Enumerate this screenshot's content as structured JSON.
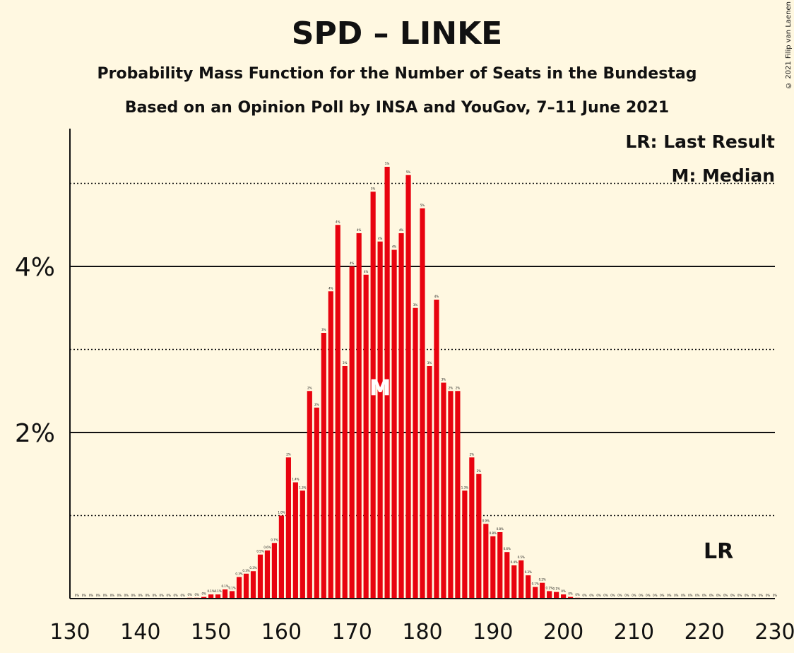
{
  "title": "SPD – LINKE",
  "subtitle1": "Probability Mass Function for the Number of Seats in the Bundestag",
  "subtitle2": "Based on an Opinion Poll by INSA and YouGov, 7–11 June 2021",
  "copyright": "© 2021 Filip van Laenen",
  "legend": {
    "last_result": "LR: Last Result",
    "median": "M: Median"
  },
  "markers": {
    "median_label": "M",
    "median_seat": 174,
    "last_result_label": "LR",
    "last_result_seat": 222
  },
  "colors": {
    "bar": "#e8030f",
    "background": "#fff8e1"
  },
  "chart_data": {
    "type": "bar",
    "xlabel": "",
    "ylabel": "",
    "xlim": [
      130,
      230
    ],
    "ylim": [
      0,
      5.6
    ],
    "x_ticks": [
      "130",
      "140",
      "150",
      "160",
      "170",
      "180",
      "190",
      "200",
      "210",
      "220",
      "230"
    ],
    "y_ticks": [
      {
        "value": 2,
        "label": "2%"
      },
      {
        "value": 4,
        "label": "4%"
      }
    ],
    "y_solid_gridlines": [
      2,
      4
    ],
    "y_dotted_gridlines": [
      1,
      3,
      5
    ],
    "series": [
      {
        "seats": [
          131,
          132,
          133,
          134,
          135,
          136,
          137,
          138,
          139,
          140,
          141,
          142,
          143,
          144,
          145,
          146,
          147,
          148,
          149,
          150,
          151,
          152,
          153,
          154,
          155,
          156,
          157,
          158,
          159,
          160,
          161,
          162,
          163,
          164,
          165,
          166,
          167,
          168,
          169,
          170,
          171,
          172,
          173,
          174,
          175,
          176,
          177,
          178,
          179,
          180,
          181,
          182,
          183,
          184,
          185,
          186,
          187,
          188,
          189,
          190,
          191,
          192,
          193,
          194,
          195,
          196,
          197,
          198,
          199,
          200,
          201,
          202,
          203,
          204,
          205,
          206,
          207,
          208,
          209,
          210,
          211,
          212,
          213,
          214,
          215,
          216,
          217,
          218,
          219,
          220,
          221,
          222,
          223,
          224,
          225,
          226,
          227,
          228,
          229,
          230
        ],
        "values": [
          0,
          0,
          0,
          0,
          0,
          0,
          0,
          0,
          0,
          0,
          0,
          0,
          0,
          0,
          0,
          0,
          0.01,
          0.01,
          0.02,
          0.05,
          0.05,
          0.11,
          0.09,
          0.26,
          0.3,
          0.33,
          0.53,
          0.58,
          0.67,
          1.0,
          1.7,
          1.4,
          1.3,
          2.5,
          2.3,
          3.2,
          3.7,
          4.5,
          2.8,
          4.0,
          4.4,
          3.9,
          4.9,
          4.3,
          5.2,
          4.2,
          4.4,
          5.1,
          3.5,
          4.7,
          2.8,
          3.6,
          2.6,
          2.5,
          2.5,
          1.3,
          1.7,
          1.5,
          0.9,
          0.75,
          0.8,
          0.56,
          0.4,
          0.46,
          0.28,
          0.14,
          0.19,
          0.09,
          0.08,
          0.05,
          0.02,
          0.01,
          0,
          0,
          0,
          0,
          0,
          0,
          0,
          0,
          0,
          0,
          0,
          0,
          0,
          0,
          0,
          0,
          0,
          0,
          0,
          0,
          0,
          0,
          0,
          0,
          0,
          0,
          0,
          0
        ],
        "labels": [
          "0%",
          "0%",
          "0%",
          "0%",
          "0%",
          "0%",
          "0%",
          "0%",
          "0%",
          "0%",
          "0%",
          "0%",
          "0%",
          "0%",
          "0%",
          "0%",
          "0%",
          "0%",
          "0%",
          "0.1%",
          "0.1%",
          "0.1%",
          "0.1%",
          "0.3%",
          "0.3%",
          "0.3%",
          "0.5%",
          "0.6%",
          "0.7%",
          "1.0%",
          "2%",
          "1.4%",
          "1.3%",
          "2%",
          "2%",
          "3%",
          "4%",
          "4%",
          "3%",
          "4%",
          "4%",
          "4%",
          "5%",
          "4%",
          "5%",
          "4%",
          "4%",
          "5%",
          "3%",
          "5%",
          "3%",
          "4%",
          "3%",
          "2%",
          "2%",
          "1.3%",
          "2%",
          "2%",
          "0.9%",
          "0.8%",
          "0.8%",
          "0.6%",
          "0.4%",
          "0.5%",
          "0.3%",
          "0.1%",
          "0.2%",
          "0.1%",
          "0.1%",
          "0%",
          "0%",
          "0%",
          "0%",
          "0%",
          "0%",
          "0%",
          "0%",
          "0%",
          "0%",
          "0%",
          "0%",
          "0%",
          "0%",
          "0%",
          "0%",
          "0%",
          "0%",
          "0%",
          "0%",
          "0%",
          "0%",
          "0%",
          "0%",
          "0%",
          "0%",
          "0%",
          "0%",
          "0%",
          "0%",
          "0%"
        ]
      }
    ]
  }
}
